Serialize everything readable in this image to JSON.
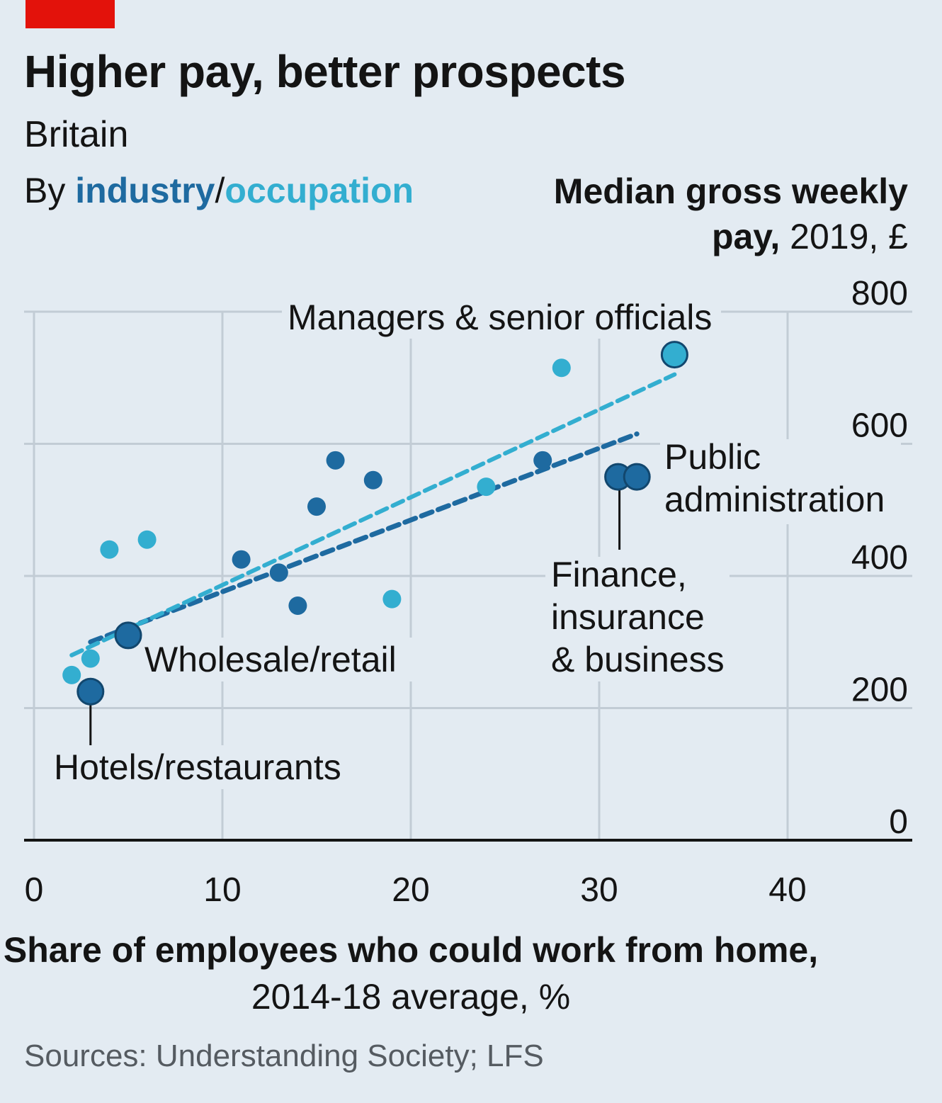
{
  "header": {
    "title": "Higher pay, better prospects",
    "subtitle": "Britain",
    "by_prefix": "By ",
    "by_industry": "industry",
    "by_separator": "/",
    "by_occupation": "occupation"
  },
  "footer": {
    "source": "Sources: Understanding Society; LFS"
  },
  "colors": {
    "industry": "#1e6aa0",
    "occupation": "#33aed0",
    "brand": "#e3120b",
    "background": "#e3ebf2"
  },
  "chart_data": {
    "type": "scatter",
    "ylabel_bold": "Median gross weekly pay,",
    "ylabel_rest": " 2019, £",
    "xlabel_bold": "Share of employees who could work from home,",
    "xlabel_rest": " 2014-18 average, %",
    "xlim": [
      0,
      46
    ],
    "ylim": [
      0,
      800
    ],
    "x_ticks": [
      0,
      10,
      20,
      30,
      40
    ],
    "y_ticks": [
      0,
      200,
      400,
      600,
      800
    ],
    "grid": true,
    "series": [
      {
        "key": "industry",
        "color": "#1e6aa0",
        "points": [
          {
            "x": 3,
            "y": 225,
            "label": "Hotels/restaurants"
          },
          {
            "x": 5,
            "y": 310,
            "label": "Wholesale/retail"
          },
          {
            "x": 11,
            "y": 425
          },
          {
            "x": 13,
            "y": 405
          },
          {
            "x": 14,
            "y": 355
          },
          {
            "x": 15,
            "y": 505
          },
          {
            "x": 16,
            "y": 575
          },
          {
            "x": 18,
            "y": 545
          },
          {
            "x": 27,
            "y": 575
          },
          {
            "x": 31,
            "y": 550,
            "label": "Finance, insurance & business"
          },
          {
            "x": 32,
            "y": 550,
            "label": "Public administration"
          }
        ],
        "trend": [
          {
            "x": 3,
            "y": 300
          },
          {
            "x": 32,
            "y": 615
          }
        ]
      },
      {
        "key": "occupation",
        "color": "#33aed0",
        "points": [
          {
            "x": 2,
            "y": 250
          },
          {
            "x": 3,
            "y": 275
          },
          {
            "x": 4,
            "y": 440
          },
          {
            "x": 6,
            "y": 455
          },
          {
            "x": 19,
            "y": 365
          },
          {
            "x": 24,
            "y": 535
          },
          {
            "x": 28,
            "y": 715
          },
          {
            "x": 34,
            "y": 735,
            "label": "Managers & senior officials"
          }
        ],
        "trend": [
          {
            "x": 2,
            "y": 280
          },
          {
            "x": 34,
            "y": 705
          }
        ]
      }
    ],
    "annotations": {
      "managers": "Managers & senior officials",
      "public": [
        "Public",
        "administration"
      ],
      "finance": [
        "Finance,",
        "insurance",
        "& business"
      ],
      "wholesale": "Wholesale/retail",
      "hotels": "Hotels/restaurants"
    }
  }
}
